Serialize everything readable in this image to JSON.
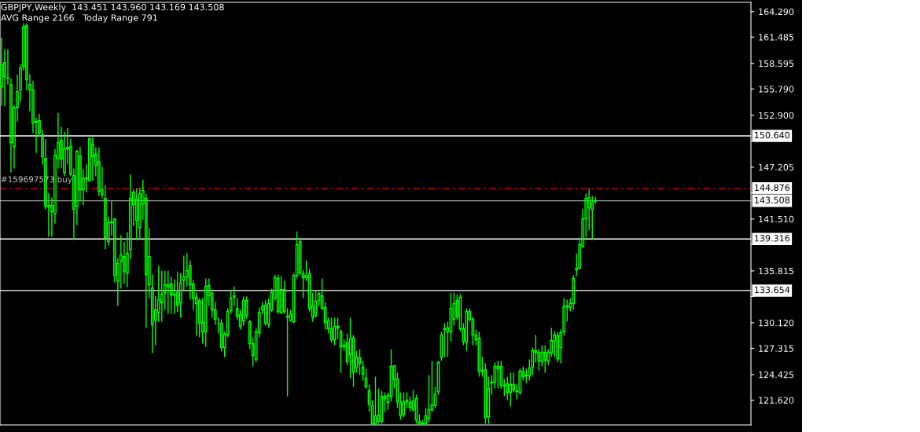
{
  "chart_data": {
    "type": "candlestick",
    "title": "GBPJPY,Weekly  143.451 143.960 143.169 143.508",
    "subtitle": "AVG Range 2166   Today Range 791",
    "annotations": [
      {
        "text": "#159697573 buy",
        "y": 144.876
      }
    ],
    "categories": [
      null,
      null,
      null,
      null,
      null,
      null,
      null,
      null,
      null,
      null,
      null,
      null,
      null,
      null,
      null,
      null,
      null,
      null,
      null,
      null,
      null,
      null,
      null,
      null,
      null,
      null,
      null,
      null,
      null,
      null,
      null,
      null,
      null,
      null,
      null,
      null,
      null,
      null,
      null,
      null,
      null,
      null,
      null,
      null,
      null,
      null,
      null,
      null,
      null,
      null,
      null,
      null,
      null,
      null,
      null,
      null,
      null,
      null,
      null,
      null,
      null,
      null,
      null,
      null,
      null,
      null,
      null,
      null,
      null,
      null,
      null,
      null,
      null,
      null,
      null,
      null,
      null,
      null,
      null,
      null,
      null,
      null,
      null,
      null,
      null,
      null,
      null,
      null,
      null,
      null,
      null,
      null,
      null,
      null,
      null,
      null,
      null,
      null,
      null,
      null,
      null,
      null,
      null,
      null,
      null,
      null,
      null,
      null,
      null,
      null,
      null,
      null,
      null,
      null,
      null,
      null,
      null,
      null,
      null,
      null,
      null,
      null,
      null,
      null,
      null,
      null,
      null,
      null,
      null,
      null,
      null,
      null,
      null,
      null,
      null,
      null,
      null,
      null,
      null,
      null,
      null,
      null,
      null,
      null,
      null,
      null,
      null,
      null,
      null,
      null,
      null,
      null,
      null,
      null,
      null,
      null,
      null,
      null,
      null,
      null,
      null,
      null,
      null,
      null,
      null,
      null,
      null,
      null,
      null,
      null,
      null,
      null,
      null,
      null,
      null,
      null,
      null,
      null,
      null,
      null,
      null,
      null,
      null,
      null,
      null,
      null,
      null,
      null,
      null,
      null,
      null,
      null,
      null,
      null,
      null,
      null,
      null,
      null,
      null,
      null,
      null,
      null,
      null,
      null,
      null,
      null,
      null,
      null,
      null,
      null,
      null,
      null,
      null,
      null,
      null,
      null,
      null,
      null,
      null,
      null,
      null,
      null,
      null,
      null,
      null,
      null,
      null,
      null,
      null,
      null,
      null,
      null,
      null,
      null,
      null,
      null,
      null,
      null,
      null
    ],
    "series": [
      {
        "color": "#00ff00",
        "ohlc": [
          [
            156.0,
            161.44,
            153.94,
            158.5
          ],
          [
            158.68,
            160.15,
            153.94,
            157.13
          ],
          [
            157.0,
            160.15,
            156.27,
            156.96
          ],
          [
            156.27,
            156.96,
            146.62,
            149.89
          ],
          [
            149.46,
            154.0,
            147.05,
            153.77
          ],
          [
            153.77,
            157.39,
            152.22,
            155.5
          ],
          [
            155.67,
            158.51,
            154.37,
            158.08
          ],
          [
            158.25,
            163.0,
            157.82,
            162.65
          ],
          [
            162.74,
            163.0,
            155.67,
            156.79
          ],
          [
            156.27,
            157.39,
            153.34,
            155.67
          ],
          [
            155.67,
            156.7,
            150.93,
            152.05
          ],
          [
            152.13,
            152.65,
            148.77,
            152.22
          ],
          [
            152.3,
            153.08,
            150.5,
            150.93
          ],
          [
            150.76,
            151.36,
            147.48,
            148.34
          ],
          [
            148.17,
            150.24,
            142.56,
            142.91
          ],
          [
            142.91,
            144.37,
            139.55,
            143.0
          ],
          [
            143.0,
            143.86,
            139.55,
            142.31
          ],
          [
            142.13,
            149.2,
            141.01,
            148.51
          ],
          [
            148.17,
            153.17,
            147.05,
            149.89
          ],
          [
            150.15,
            151.62,
            147.05,
            148.08
          ],
          [
            146.62,
            151.1,
            146.19,
            149.2
          ],
          [
            149.2,
            151.53,
            147.48,
            149.37
          ],
          [
            149.46,
            150.32,
            146.19,
            146.44
          ],
          [
            146.27,
            147.05,
            139.2,
            142.56
          ],
          [
            142.91,
            149.12,
            140.84,
            148.94
          ],
          [
            148.43,
            149.46,
            143.51,
            144.72
          ],
          [
            144.72,
            146.96,
            143.0,
            146.01
          ],
          [
            146.01,
            147.48,
            144.46,
            145.93
          ],
          [
            145.75,
            150.5,
            145.58,
            150.32
          ],
          [
            149.72,
            150.5,
            145.75,
            148.34
          ],
          [
            148.6,
            149.37,
            146.19,
            147.39
          ],
          [
            147.82,
            149.37,
            144.03,
            144.55
          ],
          [
            144.72,
            147.22,
            143.77,
            144.2
          ],
          [
            143.77,
            145.24,
            138.17,
            139.46
          ],
          [
            139.03,
            141.79,
            138.6,
            141.1
          ],
          [
            141.1,
            143.51,
            139.72,
            141.19
          ],
          [
            141.53,
            141.6,
            134.55,
            135.32
          ],
          [
            134.72,
            137.22,
            131.96,
            136.62
          ],
          [
            136.88,
            139.72,
            133.86,
            137.56
          ],
          [
            137.39,
            139.03,
            134.38,
            135.75
          ],
          [
            135.58,
            140.06,
            134.03,
            137.74
          ],
          [
            138.17,
            146.44,
            137.13,
            143.77
          ],
          [
            143.08,
            144.72,
            140.75,
            144.46
          ],
          [
            143.69,
            144.89,
            139.2,
            141.36
          ],
          [
            140.58,
            144.89,
            139.2,
            144.29
          ],
          [
            143.17,
            145.84,
            141.44,
            144.63
          ],
          [
            143.77,
            144.29,
            129.55,
            135.41
          ],
          [
            134.29,
            140.5,
            132.82,
            137.39
          ],
          [
            133.94,
            135.41,
            126.79,
            129.89
          ],
          [
            130.41,
            133.08,
            127.65,
            131.53
          ],
          [
            131.27,
            136.36,
            130.24,
            132.65
          ],
          [
            132.31,
            135.84,
            130.24,
            133.26
          ],
          [
            133.43,
            135.84,
            131.53,
            134.29
          ],
          [
            134.29,
            135.84,
            131.1,
            134.12
          ],
          [
            134.38,
            135.15,
            131.1,
            133.17
          ],
          [
            133.17,
            134.89,
            131.1,
            133.26
          ],
          [
            133.43,
            135.75,
            131.27,
            132.05
          ],
          [
            132.31,
            135.58,
            130.67,
            134.46
          ],
          [
            134.81,
            137.48,
            133.69,
            135.15
          ],
          [
            135.15,
            137.74,
            134.12,
            135.84
          ],
          [
            136.36,
            136.96,
            132.65,
            134.29
          ],
          [
            134.38,
            134.81,
            131.53,
            132.82
          ],
          [
            132.91,
            133.43,
            128.69,
            132.22
          ],
          [
            132.57,
            132.82,
            128.51,
            130.07
          ],
          [
            130.15,
            132.82,
            127.82,
            129.12
          ],
          [
            129.12,
            134.98,
            127.48,
            134.12
          ],
          [
            134.2,
            134.98,
            131.96,
            133.08
          ],
          [
            133.34,
            133.69,
            130.67,
            131.53
          ],
          [
            131.53,
            132.39,
            129.89,
            130.5
          ],
          [
            130.07,
            130.67,
            128.94,
            130.07
          ],
          [
            130.07,
            130.5,
            126.96,
            127.39
          ],
          [
            127.39,
            129.12,
            126.36,
            128.86
          ],
          [
            128.77,
            131.7,
            128.51,
            131.36
          ],
          [
            131.44,
            133.69,
            131.1,
            132.82
          ],
          [
            132.91,
            134.12,
            131.96,
            133.08
          ],
          [
            131.7,
            132.82,
            130.41,
            130.84
          ],
          [
            131.02,
            131.53,
            129.38,
            129.72
          ],
          [
            130.32,
            133.0,
            129.81,
            132.57
          ],
          [
            132.57,
            133.0,
            130.58,
            130.93
          ],
          [
            130.24,
            130.41,
            127.22,
            127.82
          ],
          [
            127.82,
            128.51,
            125.32,
            126.53
          ],
          [
            126.1,
            129.55,
            125.84,
            129.12
          ],
          [
            129.03,
            131.79,
            128.51,
            131.27
          ],
          [
            131.53,
            132.39,
            131.1,
            131.88
          ],
          [
            130.07,
            132.57,
            129.81,
            132.05
          ],
          [
            129.98,
            132.82,
            129.55,
            132.22
          ],
          [
            131.53,
            133.86,
            131.27,
            133.43
          ],
          [
            132.82,
            135.41,
            132.57,
            135.07
          ],
          [
            134.98,
            135.41,
            131.1,
            131.36
          ],
          [
            131.27,
            135.24,
            131.1,
            133.77
          ],
          [
            133.77,
            134.72,
            131.1,
            131.36
          ],
          [
            130.84,
            131.7,
            122.05,
            130.76
          ],
          [
            130.41,
            131.53,
            130.24,
            131.02
          ],
          [
            130.24,
            135.58,
            130.07,
            135.32
          ],
          [
            135.32,
            140.15,
            134.98,
            138.69
          ],
          [
            139.03,
            139.46,
            135.41,
            135.58
          ],
          [
            135.5,
            135.93,
            132.82,
            135.07
          ],
          [
            135.07,
            136.96,
            134.72,
            135.32
          ],
          [
            135.5,
            136.01,
            131.36,
            131.7
          ],
          [
            131.96,
            133.43,
            130.24,
            130.76
          ],
          [
            130.93,
            133.69,
            130.67,
            132.48
          ],
          [
            132.57,
            133.51,
            131.96,
            133.34
          ],
          [
            133.08,
            134.98,
            131.53,
            131.7
          ],
          [
            131.79,
            132.39,
            129.38,
            130.15
          ],
          [
            130.32,
            130.67,
            128.94,
            129.46
          ],
          [
            129.46,
            130.67,
            127.91,
            128.26
          ],
          [
            128.26,
            130.67,
            127.65,
            129.72
          ],
          [
            129.72,
            130.67,
            128.34,
            129.55
          ],
          [
            129.12,
            129.38,
            124.64,
            127.48
          ],
          [
            127.48,
            128.26,
            127.05,
            127.65
          ],
          [
            127.91,
            128.94,
            125.5,
            125.84
          ],
          [
            126.62,
            130.67,
            124.03,
            128.34
          ],
          [
            128.43,
            128.77,
            123.08,
            124.72
          ],
          [
            125.24,
            127.05,
            124.64,
            126.36
          ],
          [
            126.27,
            127.22,
            124.38,
            125.67
          ],
          [
            125.24,
            125.93,
            123.77,
            124.46
          ],
          [
            124.03,
            125.07,
            122.91,
            123.08
          ],
          [
            122.65,
            123.34,
            120.33,
            121.19
          ],
          [
            121.02,
            121.62,
            118.95,
            119.03
          ],
          [
            119.03,
            124.2,
            118.95,
            119.9
          ],
          [
            119.98,
            122.91,
            119.03,
            119.29
          ],
          [
            119.29,
            122.65,
            119.03,
            122.05
          ],
          [
            122.05,
            122.48,
            120.33,
            121.79
          ],
          [
            121.36,
            122.48,
            120.58,
            122.14
          ],
          [
            122.05,
            127.22,
            121.45,
            125.32
          ],
          [
            125.41,
            125.41,
            122.91,
            123.86
          ],
          [
            123.95,
            124.64,
            120.76,
            121.45
          ],
          [
            121.36,
            122.48,
            119.46,
            119.9
          ],
          [
            120.07,
            122.48,
            119.72,
            121.45
          ],
          [
            121.45,
            122.48,
            120.76,
            121.62
          ],
          [
            121.36,
            122.05,
            120.33,
            120.84
          ],
          [
            120.58,
            122.74,
            120.33,
            121.53
          ],
          [
            121.79,
            122.22,
            119.03,
            119.46
          ],
          [
            119.29,
            120.07,
            118.95,
            119.03
          ],
          [
            119.1,
            119.46,
            118.95,
            119.03
          ],
          [
            119.03,
            120.76,
            118.95,
            119.9
          ],
          [
            119.63,
            124.38,
            119.2,
            120.58
          ],
          [
            120.58,
            125.93,
            120.33,
            121.1
          ],
          [
            121.02,
            123.08,
            120.76,
            122.22
          ],
          [
            122.57,
            125.93,
            122.22,
            125.76
          ],
          [
            126.36,
            129.12,
            125.93,
            128.77
          ],
          [
            129.38,
            130.07,
            126.36,
            129.46
          ],
          [
            129.12,
            130.24,
            126.36,
            129.55
          ],
          [
            129.12,
            133.43,
            128.08,
            131.7
          ],
          [
            130.5,
            133.43,
            129.81,
            132.22
          ],
          [
            132.57,
            133.26,
            130.5,
            130.76
          ],
          [
            129.46,
            133.26,
            129.2,
            132.91
          ],
          [
            129.46,
            130.07,
            127.65,
            128.08
          ],
          [
            128.0,
            131.7,
            127.05,
            131.36
          ],
          [
            131.36,
            131.7,
            130.24,
            130.5
          ],
          [
            130.5,
            130.76,
            127.65,
            128.77
          ],
          [
            128.77,
            129.38,
            127.65,
            128.26
          ],
          [
            128.43,
            129.12,
            124.2,
            124.81
          ],
          [
            124.81,
            126.36,
            124.2,
            124.89
          ],
          [
            124.98,
            125.67,
            119.03,
            119.72
          ],
          [
            119.81,
            124.2,
            119.03,
            122.91
          ],
          [
            123.51,
            124.38,
            122.22,
            123.6
          ],
          [
            123.6,
            125.76,
            122.91,
            125.32
          ],
          [
            125.07,
            125.93,
            122.91,
            125.32
          ],
          [
            125.32,
            125.93,
            122.91,
            123.26
          ],
          [
            123.26,
            123.95,
            122.05,
            123.17
          ],
          [
            123.43,
            124.2,
            121.62,
            122.48
          ],
          [
            122.48,
            124.64,
            120.93,
            123.34
          ],
          [
            123.34,
            124.64,
            122.48,
            122.74
          ],
          [
            122.65,
            123.34,
            121.7,
            122.57
          ],
          [
            122.48,
            125.07,
            122.22,
            124.81
          ],
          [
            124.81,
            125.32,
            123.77,
            124.2
          ],
          [
            124.29,
            125.07,
            123.51,
            124.38
          ],
          [
            124.29,
            126.1,
            123.77,
            125.15
          ],
          [
            125.24,
            127.39,
            124.38,
            127.05
          ],
          [
            127.05,
            128.77,
            125.76,
            126.88
          ],
          [
            126.88,
            127.22,
            124.89,
            125.93
          ],
          [
            125.84,
            127.65,
            125.32,
            126.88
          ],
          [
            126.88,
            127.65,
            124.64,
            126.01
          ],
          [
            125.93,
            127.22,
            125.5,
            126.88
          ],
          [
            126.79,
            129.55,
            126.36,
            128.17
          ],
          [
            128.08,
            129.2,
            126.36,
            128.77
          ],
          [
            128.69,
            129.12,
            125.76,
            126.19
          ],
          [
            127.39,
            129.38,
            125.67,
            129.03
          ],
          [
            129.12,
            132.82,
            128.69,
            131.96
          ],
          [
            131.88,
            132.65,
            130.24,
            131.96
          ],
          [
            131.79,
            132.82,
            131.36,
            132.22
          ],
          [
            132.22,
            135.32,
            131.53,
            134.98
          ],
          [
            135.93,
            137.74,
            135.24,
            136.1
          ],
          [
            136.1,
            139.46,
            136.01,
            138.69
          ],
          [
            138.51,
            142.65,
            138.34,
            141.53
          ],
          [
            141.53,
            144.29,
            139.46,
            143.77
          ],
          [
            142.74,
            144.876,
            140.32,
            143.86
          ],
          [
            143.34,
            144.03,
            139.2,
            142.56
          ],
          [
            143.451,
            143.96,
            143.169,
            143.508
          ],
          null,
          null,
          null,
          null,
          null,
          null,
          null,
          null,
          null,
          null,
          null,
          null,
          null,
          null,
          null,
          null,
          null,
          null,
          null,
          null,
          null,
          null,
          null,
          null,
          null,
          null,
          null,
          null,
          null,
          null,
          null,
          null,
          null,
          null,
          null,
          null,
          null,
          null,
          null,
          null,
          null,
          null,
          null,
          null,
          null,
          null,
          null,
          null,
          null
        ]
      }
    ],
    "ylim": [
      118.9,
      165.3
    ],
    "yticks": [
      {
        "value": 164.29,
        "label": "164.290"
      },
      {
        "value": 161.485,
        "label": "161.485"
      },
      {
        "value": 158.595,
        "label": "158.595"
      },
      {
        "value": 155.79,
        "label": "155.790"
      },
      {
        "value": 152.9,
        "label": "152.900"
      },
      {
        "value": 150.095,
        "label": null
      },
      {
        "value": 147.205,
        "label": "147.205"
      },
      {
        "value": 144.4,
        "label": null
      },
      {
        "value": 141.51,
        "label": "141.510"
      },
      {
        "value": 138.705,
        "label": null
      },
      {
        "value": 135.815,
        "label": "135.815"
      },
      {
        "value": 133.01,
        "label": null
      },
      {
        "value": 130.12,
        "label": "130.120"
      },
      {
        "value": 127.315,
        "label": "127.315"
      },
      {
        "value": 124.425,
        "label": "124.425"
      },
      {
        "value": 121.62,
        "label": "121.620"
      }
    ],
    "ref_lines": [
      {
        "axis": "y",
        "value": 150.64,
        "label": "150.640",
        "color": "#ffffff"
      },
      {
        "axis": "y",
        "value": 144.876,
        "label": "144.876",
        "color": "#c00000",
        "line_style": "dashed"
      },
      {
        "axis": "y",
        "value": 143.508,
        "label": "143.508",
        "color": "#a0a0a0"
      },
      {
        "axis": "y",
        "value": 139.316,
        "label": "139.316",
        "color": "#ffffff"
      },
      {
        "axis": "y",
        "value": 133.654,
        "label": "133.654",
        "color": "#ffffff"
      }
    ],
    "grid": false,
    "legend": false
  }
}
